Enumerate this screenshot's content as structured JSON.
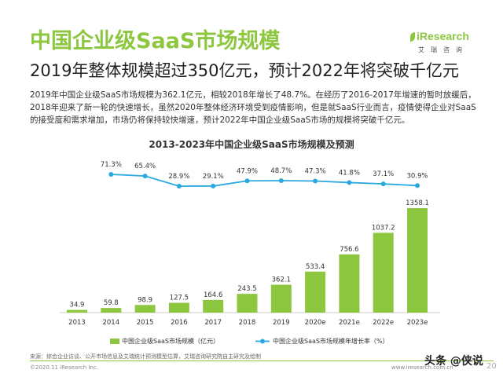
{
  "header": {
    "title": "中国企业级SaaS市场规模",
    "subtitle": "2019年整体规模超过350亿元，预计2022年将突破千亿元"
  },
  "logo": {
    "main": "iResearch",
    "sub": "艾瑞咨询"
  },
  "description": [
    "2019年中国企业级SaaS市场规模为362.1亿元，相较2018年增长了48.7%。在经历了2016-2017年增速的暂时放缓后，",
    "2018年迎来了新一轮的快速增长，虽然2020年整体经济环境受到疫情影响，但是就SaaS行业而言，疫情使得企业对SaaS",
    "的接受度和需求增加，市场仍将保持较快增速，预计2022年中国企业级SaaS市场的规模将突破千亿元。"
  ],
  "footer": {
    "source": "来源：综合企业访谈、公开市场信息及艾瑞统计预测模型估算，艾瑞咨询研究院自主研究及绘制",
    "copyright": "©2020.11 iResearch Inc.",
    "website": "www.iresearch.com.cn",
    "page_number": "20",
    "watermark": "头条 @侠说"
  },
  "colors": {
    "accent": "#8dc63f",
    "bar": "#8dc63f",
    "line": "#29a9e0"
  },
  "chart_data": {
    "type": "bar",
    "title": "2013-2023年中国企业级SaaS市场规模及预测",
    "categories": [
      "2013",
      "2014",
      "2015",
      "2016",
      "2017",
      "2018",
      "2019",
      "2020e",
      "2021e",
      "2022e",
      "2023e"
    ],
    "series": [
      {
        "name": "中国企业级SaaS市场规模（亿元）",
        "type": "bar",
        "values": [
          34.9,
          59.8,
          98.9,
          127.5,
          164.6,
          243.5,
          362.1,
          533.4,
          756.6,
          1037.2,
          1358.1
        ],
        "labels": [
          "34.9",
          "59.8",
          "98.9",
          "127.5",
          "164.6",
          "243.5",
          "362.1",
          "533.4",
          "756.6",
          "1037.2",
          "1358.1"
        ]
      },
      {
        "name": "中国企业级SaaS市场规模年增长率（%）",
        "type": "line",
        "values": [
          null,
          71.3,
          65.4,
          28.9,
          29.1,
          47.9,
          48.7,
          47.3,
          41.8,
          37.1,
          30.9
        ],
        "labels": [
          "",
          "71.3%",
          "65.4%",
          "28.9%",
          "29.1%",
          "47.9%",
          "48.7%",
          "47.3%",
          "41.8%",
          "37.1%",
          "30.9%"
        ]
      }
    ],
    "legend_position": "bottom",
    "grid": false
  }
}
